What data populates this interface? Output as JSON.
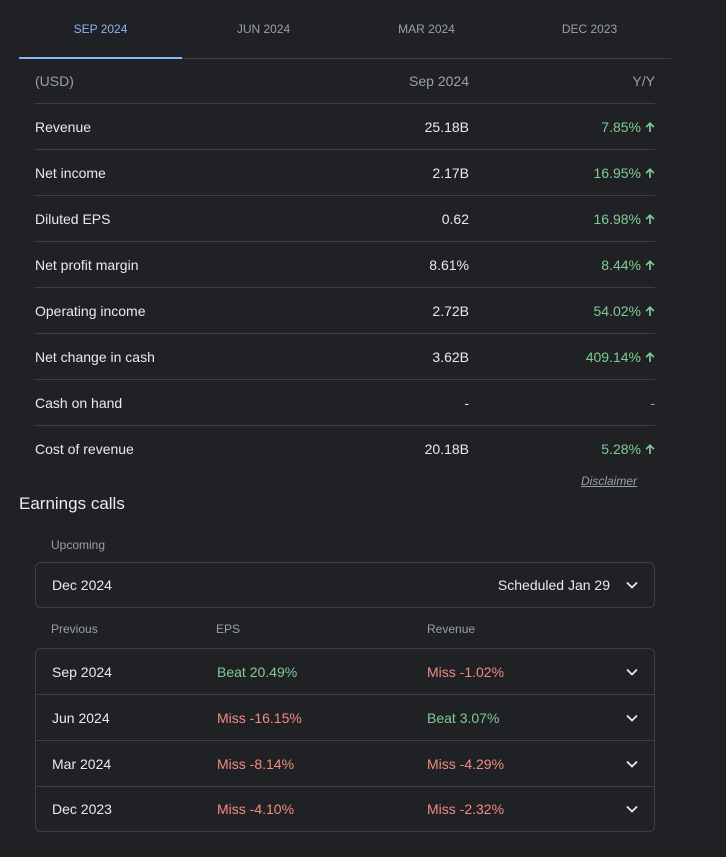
{
  "tabs": [
    {
      "label": "SEP 2024",
      "active": true
    },
    {
      "label": "JUN 2024",
      "active": false
    },
    {
      "label": "MAR 2024",
      "active": false
    },
    {
      "label": "DEC 2023",
      "active": false
    }
  ],
  "financials": {
    "header": {
      "label": "(USD)",
      "value": "Sep 2024",
      "yoy": "Y/Y"
    },
    "rows": [
      {
        "label": "Revenue",
        "value": "25.18B",
        "yoy": "7.85%"
      },
      {
        "label": "Net income",
        "value": "2.17B",
        "yoy": "16.95%"
      },
      {
        "label": "Diluted EPS",
        "value": "0.62",
        "yoy": "16.98%"
      },
      {
        "label": "Net profit margin",
        "value": "8.61%",
        "yoy": "8.44%"
      },
      {
        "label": "Operating income",
        "value": "2.72B",
        "yoy": "54.02%"
      },
      {
        "label": "Net change in cash",
        "value": "3.62B",
        "yoy": "409.14%"
      },
      {
        "label": "Cash on hand",
        "value": "-",
        "yoy": "-"
      },
      {
        "label": "Cost of revenue",
        "value": "20.18B",
        "yoy": "5.28%"
      }
    ],
    "disclaimer": "Disclaimer"
  },
  "earnings": {
    "title": "Earnings calls",
    "upcoming_label": "Upcoming",
    "upcoming": {
      "period": "Dec 2024",
      "status": "Scheduled Jan 29"
    },
    "previous_headers": {
      "period": "Previous",
      "eps": "EPS",
      "revenue": "Revenue"
    },
    "previous": [
      {
        "period": "Sep 2024",
        "eps": "Beat 20.49%",
        "eps_type": "beat",
        "revenue": "Miss -1.02%",
        "revenue_type": "miss"
      },
      {
        "period": "Jun 2024",
        "eps": "Miss -16.15%",
        "eps_type": "miss",
        "revenue": "Beat 3.07%",
        "revenue_type": "beat"
      },
      {
        "period": "Mar 2024",
        "eps": "Miss -8.14%",
        "eps_type": "miss",
        "revenue": "Miss -4.29%",
        "revenue_type": "miss"
      },
      {
        "period": "Dec 2023",
        "eps": "Miss -4.10%",
        "eps_type": "miss",
        "revenue": "Miss -2.32%",
        "revenue_type": "miss"
      }
    ]
  },
  "colors": {
    "accent": "#8ab4f8",
    "positive": "#81c995",
    "negative": "#f28b82",
    "background": "#202124"
  },
  "icons": {
    "up_arrow": "arrow-up-icon",
    "chevron": "chevron-down-icon"
  }
}
